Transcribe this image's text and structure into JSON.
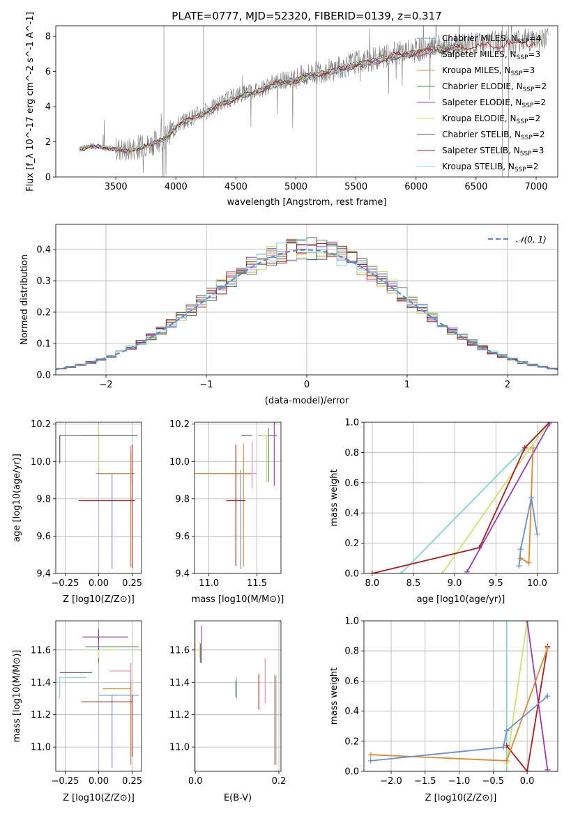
{
  "figure": {
    "title": "PLATE=0777, MJD=52320, FIBERID=0139, z=0.317"
  },
  "chart_data": [
    {
      "id": "spectrum",
      "type": "line",
      "title": "PLATE=0777, MJD=52320, FIBERID=0139, z=0.317",
      "xlabel": "wavelength [Angstrom, rest frame]",
      "ylabel": "Flux [f_λ 10^-17 erg cm^-2 s^-1 A^-1]",
      "xlim": [
        3000,
        7180
      ],
      "ylim": [
        0,
        8.6
      ],
      "xticks": [
        3500,
        4000,
        4500,
        5000,
        5500,
        6000,
        6500,
        7000
      ],
      "yticks": [
        0,
        2,
        4,
        6,
        8
      ],
      "grid": false,
      "legend_position": "top-right",
      "continuum": {
        "x": [
          3200,
          3300,
          3400,
          3500,
          3600,
          3700,
          3800,
          3900,
          4000,
          4100,
          4200,
          4300,
          4400,
          4500,
          4600,
          4700,
          4800,
          4900,
          5000,
          5100,
          5200,
          5300,
          5400,
          5500,
          5600,
          5700,
          5800,
          5900,
          6000,
          6100,
          6200,
          6300,
          6400,
          6500,
          6600,
          6700,
          6800,
          6900,
          7000,
          7100
        ],
        "y": [
          1.6,
          1.8,
          1.7,
          1.6,
          1.5,
          1.7,
          1.9,
          2.2,
          2.9,
          3.3,
          3.6,
          3.9,
          4.3,
          4.6,
          4.8,
          5.0,
          5.3,
          5.5,
          5.6,
          5.8,
          6.0,
          6.1,
          6.3,
          6.5,
          6.6,
          6.8,
          7.0,
          7.1,
          7.2,
          7.3,
          7.4,
          7.5,
          7.5,
          7.6,
          7.6,
          7.7,
          7.7,
          7.8,
          7.8,
          7.9
        ]
      },
      "legend": [
        {
          "label": "Chabrier MILES, N_SSP=4",
          "text": "Chabrier MILES, N",
          "sub": "SSP",
          "suffix": "=4",
          "color": "#6a8fd8"
        },
        {
          "label": "Salpeter MILES, N_SSP=3",
          "text": "Salpeter MILES, N",
          "sub": "SSP",
          "suffix": "=3",
          "color": "#ee82b6"
        },
        {
          "label": "Kroupa MILES, N_SSP=3",
          "text": "Kroupa MILES, N",
          "sub": "SSP",
          "suffix": "=3",
          "color": "#e08a2e"
        },
        {
          "label": "Chabrier ELODIE, N_SSP=2",
          "text": "Chabrier ELODIE, N",
          "sub": "SSP",
          "suffix": "=2",
          "color": "#4d8a4d"
        },
        {
          "label": "Salpeter ELODIE, N_SSP=2",
          "text": "Salpeter ELODIE, N",
          "sub": "SSP",
          "suffix": "=2",
          "color": "#9a3ab8"
        },
        {
          "label": "Kroupa ELODIE, N_SSP=2",
          "text": "Kroupa ELODIE, N",
          "sub": "SSP",
          "suffix": "=2",
          "color": "#cde36b"
        },
        {
          "label": "Chabrier STELIB, N_SSP=2",
          "text": "Chabrier STELIB, N",
          "sub": "SSP",
          "suffix": "=2",
          "color": "#555555"
        },
        {
          "label": "Salpeter STELIB, N_SSP=3",
          "text": "Salpeter STELIB, N",
          "sub": "SSP",
          "suffix": "=3",
          "color": "#b01a1a"
        },
        {
          "label": "Kroupa STELIB, N_SSP=2",
          "text": "Kroupa STELIB, N",
          "sub": "SSP",
          "suffix": "=2",
          "color": "#7fd6d6"
        }
      ]
    },
    {
      "id": "residuals",
      "type": "area",
      "xlabel": "(data-model)/error",
      "ylabel": "Normed distribution",
      "xlim": [
        -2.5,
        2.5
      ],
      "ylim": [
        0,
        0.48
      ],
      "xticks": [
        -2,
        -1,
        0,
        1,
        2
      ],
      "yticks": [
        0.0,
        0.1,
        0.2,
        0.3,
        0.4
      ],
      "grid": true,
      "legend_position": "top-right",
      "legend_label": "𝒩(0, 1)",
      "bin_width": 0.1,
      "gaussian": {
        "mu": 0,
        "sigma": 1
      }
    },
    {
      "id": "age-vs-Z",
      "type": "scatter",
      "xlabel": "Z [log10(Z/Z⊙)]",
      "ylabel": "age  [log10(age/yr)]",
      "xlim": [
        -0.32,
        0.32
      ],
      "ylim": [
        9.4,
        10.21
      ],
      "xticks": [
        -0.25,
        0.0,
        0.25
      ],
      "yticks": [
        9.4,
        9.6,
        9.8,
        10.0,
        10.2
      ],
      "grid": true,
      "points": [
        {
          "x": 0.1,
          "y": 9.935,
          "xerr": [
            0.12,
            0.1
          ],
          "yerr": [
            0.51,
            0.0
          ],
          "color": "#6a8fd8"
        },
        {
          "x": 0.24,
          "y": 9.935,
          "xerr": [
            0.24,
            0.03
          ],
          "yerr": [
            0.06,
            0.15
          ],
          "color": "#ee82b6"
        },
        {
          "x": 0.24,
          "y": 9.935,
          "xerr": [
            0.24,
            0.03
          ],
          "yerr": [
            0.5,
            0.12
          ],
          "color": "#e08a2e"
        },
        {
          "x": 0.0,
          "y": 10.14,
          "xerr": [
            0.02,
            0.28
          ],
          "yerr": [
            0.2,
            0.05
          ],
          "color": "#4d8a4d"
        },
        {
          "x": 0.0,
          "y": 10.14,
          "xerr": [
            0.12,
            0.25
          ],
          "yerr": [
            0.2,
            0.02
          ],
          "color": "#9a3ab8"
        },
        {
          "x": 0.0,
          "y": 10.14,
          "xerr": [
            0.02,
            0.28
          ],
          "yerr": [
            0.2,
            0.05
          ],
          "color": "#cde36b"
        },
        {
          "x": 0.25,
          "y": 9.79,
          "xerr": [
            0.4,
            0.02
          ],
          "yerr": [
            0.36,
            0.3
          ],
          "color": "#b01a1a"
        },
        {
          "x": -0.29,
          "y": 10.14,
          "xerr": [
            0.0,
            0.58
          ],
          "yerr": [
            0.15,
            0.0
          ],
          "color": "#7fd6d6"
        },
        {
          "x": -0.29,
          "y": 10.14,
          "xerr": [
            0.0,
            0.58
          ],
          "yerr": [
            0.15,
            0.0
          ],
          "color": "#555555"
        }
      ]
    },
    {
      "id": "age-vs-mass",
      "type": "scatter",
      "xlabel": "mass [log10(M/M⊙)]",
      "ylabel": "",
      "xlim": [
        10.85,
        11.75
      ],
      "ylim": [
        9.4,
        10.21
      ],
      "xticks": [
        11.0,
        11.5
      ],
      "yticks": [
        9.4,
        9.6,
        9.8,
        10.0,
        10.2
      ],
      "grid": true,
      "points": [
        {
          "x": 11.33,
          "y": 9.935,
          "xerr": [
            0.45,
            0.0
          ],
          "yerr": [
            0.51,
            0.02
          ],
          "color": "#6a8fd8"
        },
        {
          "x": 11.45,
          "y": 9.935,
          "xerr": [
            0.55,
            0.05
          ],
          "yerr": [
            0.08,
            0.17
          ],
          "color": "#ee82b6"
        },
        {
          "x": 11.36,
          "y": 9.935,
          "xerr": [
            0.51,
            0.08
          ],
          "yerr": [
            0.5,
            0.16
          ],
          "color": "#e08a2e"
        },
        {
          "x": 11.62,
          "y": 10.14,
          "xerr": [
            0.1,
            0.02
          ],
          "yerr": [
            0.25,
            0.04
          ],
          "color": "#4d8a4d"
        },
        {
          "x": 11.68,
          "y": 10.14,
          "xerr": [
            0.06,
            0.03
          ],
          "yerr": [
            0.27,
            0.07
          ],
          "color": "#9a3ab8"
        },
        {
          "x": 11.6,
          "y": 10.14,
          "xerr": [
            0.05,
            0.02
          ],
          "yerr": [
            0.25,
            0.0
          ],
          "color": "#cde36b"
        },
        {
          "x": 11.28,
          "y": 9.79,
          "xerr": [
            0.1,
            0.1
          ],
          "yerr": [
            0.35,
            0.3
          ],
          "color": "#b01a1a"
        },
        {
          "x": 11.44,
          "y": 10.14,
          "xerr": [
            0.1,
            0.0
          ],
          "yerr": [
            0.0,
            0.0
          ],
          "color": "#7fd6d6"
        },
        {
          "x": 11.44,
          "y": 10.14,
          "xerr": [
            0.1,
            0.01
          ],
          "yerr": [
            0.0,
            0.0
          ],
          "color": "#555555"
        }
      ]
    },
    {
      "id": "weight-vs-age",
      "type": "line",
      "xlabel": "age  [log10(age/yr)]",
      "ylabel": "mass weight",
      "xlim": [
        7.9,
        10.25
      ],
      "ylim": [
        0,
        1.0
      ],
      "xticks": [
        8.0,
        8.5,
        9.0,
        9.5,
        10.0
      ],
      "yticks": [
        0.0,
        0.2,
        0.4,
        0.6,
        0.8,
        1.0
      ],
      "grid": true,
      "series": [
        {
          "color": "#7fd6d6",
          "x": [
            8.35,
            10.15
          ],
          "y": [
            0.0,
            1.0
          ]
        },
        {
          "color": "#cde36b",
          "x": [
            8.85,
            9.9,
            10.15
          ],
          "y": [
            0.0,
            0.82,
            1.0
          ]
        },
        {
          "color": "#b01a1a",
          "x": [
            8.0,
            9.3,
            9.85,
            10.15
          ],
          "y": [
            0.0,
            0.17,
            0.83,
            1.0
          ]
        },
        {
          "color": "#9a3ab8",
          "x": [
            9.15,
            10.15
          ],
          "y": [
            0.01,
            0.99
          ]
        },
        {
          "color": "#e08a2e",
          "x": [
            9.8,
            9.9,
            9.95
          ],
          "y": [
            0.1,
            0.07,
            0.83
          ]
        },
        {
          "color": "#6a8fd8",
          "x": [
            9.78,
            9.8,
            9.93,
            10.0
          ],
          "y": [
            0.05,
            0.16,
            0.5,
            0.26
          ]
        }
      ]
    },
    {
      "id": "mass-vs-Z",
      "type": "scatter",
      "xlabel": "Z [log10(Z/Z⊙)]",
      "ylabel": "mass [log10(M/M⊙)]",
      "xlim": [
        -0.32,
        0.32
      ],
      "ylim": [
        10.85,
        11.78
      ],
      "xticks": [
        -0.25,
        0.0,
        0.25
      ],
      "yticks": [
        11.0,
        11.2,
        11.4,
        11.6
      ],
      "grid": true,
      "points": [
        {
          "x": 0.1,
          "y": 11.32,
          "xerr": [
            0.1,
            0.2
          ],
          "yerr": [
            0.45,
            0.0
          ],
          "color": "#6a8fd8"
        },
        {
          "x": 0.24,
          "y": 11.47,
          "xerr": [
            0.16,
            0.0
          ],
          "yerr": [
            0.58,
            0.05
          ],
          "color": "#ee82b6"
        },
        {
          "x": 0.24,
          "y": 11.36,
          "xerr": [
            0.21,
            0.0
          ],
          "yerr": [
            0.47,
            0.05
          ],
          "color": "#e08a2e"
        },
        {
          "x": 0.0,
          "y": 11.62,
          "xerr": [
            0.1,
            0.3
          ],
          "yerr": [
            0.1,
            0.0
          ],
          "color": "#4d8a4d"
        },
        {
          "x": 0.0,
          "y": 11.68,
          "xerr": [
            0.12,
            0.22
          ],
          "yerr": [
            0.1,
            0.05
          ],
          "color": "#9a3ab8"
        },
        {
          "x": 0.0,
          "y": 11.6,
          "xerr": [
            0.0,
            0.15
          ],
          "yerr": [
            0.05,
            0.0
          ],
          "color": "#cde36b"
        },
        {
          "x": 0.25,
          "y": 11.28,
          "xerr": [
            0.38,
            0.0
          ],
          "yerr": [
            0.34,
            0.04
          ],
          "color": "#b01a1a"
        },
        {
          "x": -0.29,
          "y": 11.43,
          "xerr": [
            0.0,
            0.2
          ],
          "yerr": [
            0.13,
            0.0
          ],
          "color": "#7fd6d6"
        },
        {
          "x": -0.29,
          "y": 11.46,
          "xerr": [
            0.0,
            0.24
          ],
          "yerr": [
            0.0,
            0.0
          ],
          "color": "#555555"
        }
      ]
    },
    {
      "id": "mass-vs-EBV",
      "type": "scatter",
      "xlabel": "E(B-V)",
      "ylabel": "",
      "xlim": [
        -0.002,
        0.205
      ],
      "ylim": [
        10.85,
        11.78
      ],
      "xticks": [
        0.0,
        0.2
      ],
      "yticks": [
        11.0,
        11.2,
        11.4,
        11.6
      ],
      "grid": true,
      "points": [
        {
          "x": 0.19,
          "y": 11.42,
          "yerr": [
            0.53,
            0.03
          ],
          "color": "#6a8fd8"
        },
        {
          "x": 0.167,
          "y": 11.47,
          "yerr": [
            0.2,
            0.08
          ],
          "color": "#ee82b6"
        },
        {
          "x": 0.193,
          "y": 11.36,
          "yerr": [
            0.47,
            0.08
          ],
          "color": "#e08a2e"
        },
        {
          "x": 0.012,
          "y": 11.62,
          "yerr": [
            0.1,
            0.02
          ],
          "color": "#4d8a4d"
        },
        {
          "x": 0.015,
          "y": 11.7,
          "yerr": [
            0.18,
            0.05
          ],
          "color": "#9a3ab8"
        },
        {
          "x": 0.01,
          "y": 11.6,
          "yerr": [
            0.05,
            0.05
          ],
          "color": "#cde36b"
        },
        {
          "x": 0.152,
          "y": 11.33,
          "yerr": [
            0.1,
            0.12
          ],
          "color": "#b01a1a"
        },
        {
          "x": 0.099,
          "y": 11.38,
          "yerr": [
            0.08,
            0.05
          ],
          "color": "#7fd6d6"
        },
        {
          "x": 0.097,
          "y": 11.36,
          "yerr": [
            0.05,
            0.05
          ],
          "color": "#555555"
        }
      ]
    },
    {
      "id": "weight-vs-Z",
      "type": "line",
      "xlabel": "Z [log10(Z/Z⊙)]",
      "ylabel": "mass weight",
      "xlim": [
        -2.4,
        0.45
      ],
      "ylim": [
        0,
        1.0
      ],
      "xticks": [
        -2.0,
        -1.5,
        -1.0,
        -0.5,
        0.0
      ],
      "yticks": [
        0.0,
        0.2,
        0.4,
        0.6,
        0.8,
        1.0
      ],
      "grid": true,
      "series": [
        {
          "color": "#7fd6d6",
          "x": [
            -0.3,
            -0.3
          ],
          "y": [
            0.0,
            1.0
          ]
        },
        {
          "color": "#cde36b",
          "x": [
            -0.3,
            0.0
          ],
          "y": [
            0.05,
            1.0
          ]
        },
        {
          "color": "#9a3ab8",
          "x": [
            0.0,
            0.3
          ],
          "y": [
            1.0,
            0.01
          ]
        },
        {
          "color": "#b01a1a",
          "x": [
            -0.3,
            0.0,
            0.3
          ],
          "y": [
            0.17,
            0.0,
            0.83
          ]
        },
        {
          "color": "#e08a2e",
          "x": [
            -2.3,
            -0.3,
            0.3
          ],
          "y": [
            0.11,
            0.07,
            0.82
          ]
        },
        {
          "color": "#6a8fd8",
          "x": [
            -2.3,
            -0.35,
            -0.3,
            0.3
          ],
          "y": [
            0.07,
            0.16,
            0.27,
            0.5
          ]
        }
      ]
    }
  ]
}
